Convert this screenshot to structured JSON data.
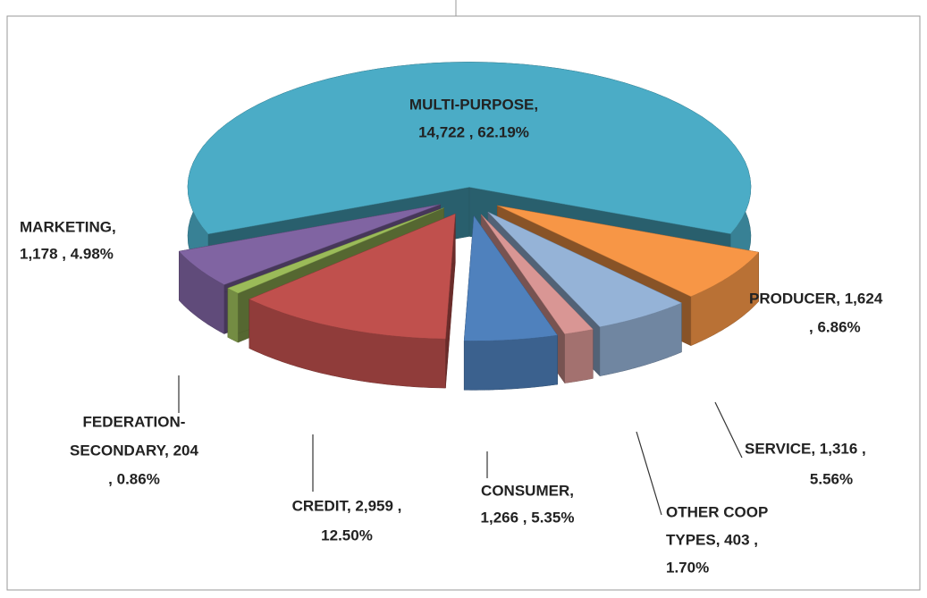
{
  "chart_data": {
    "type": "pie3d",
    "values": [
      14722,
      1624,
      1316,
      403,
      1266,
      2959,
      204,
      1178
    ],
    "percentages": [
      62.19,
      6.86,
      5.56,
      1.7,
      5.35,
      12.5,
      0.86,
      4.98
    ],
    "value_labels": [
      [
        "MULTI-PURPOSE,",
        "14,722 , 62.19%"
      ],
      [
        "PRODUCER,  1,624",
        ", 6.86%"
      ],
      [
        "SERVICE,  1,316 ,",
        "5.56%"
      ],
      [
        "OTHER COOP",
        "TYPES,  403 ,",
        "1.70%"
      ],
      [
        "CONSUMER,",
        "1,266 , 5.35%"
      ],
      [
        "CREDIT,  2,959 ,",
        "12.50%"
      ],
      [
        "FEDERATION-",
        "SECONDARY,  204",
        ", 0.86%"
      ],
      [
        "MARKETING,",
        "1,178 , 4.98%"
      ]
    ],
    "colors": [
      "#4bacc6",
      "#f79646",
      "#95b3d7",
      "#d99694",
      "#4f81bd",
      "#c0504d",
      "#9bbb59",
      "#8064a2"
    ]
  }
}
